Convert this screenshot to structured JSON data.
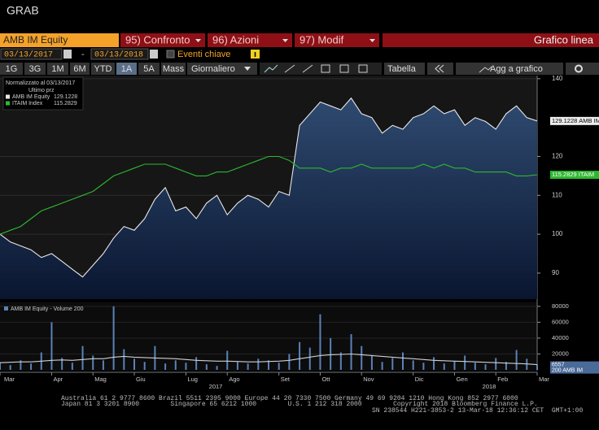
{
  "header": {
    "title": "GRAB"
  },
  "command_bar": {
    "security": "AMB IM Equity",
    "items": [
      "95) Confronto",
      "96) Azioni",
      "97) Modif"
    ],
    "view": "Grafico linea"
  },
  "date_bar": {
    "start": "03/13/2017",
    "separator": "-",
    "end": "03/13/2018",
    "events": "Eventi chiave"
  },
  "period_bar": {
    "periods": [
      "1G",
      "3G",
      "1M",
      "6M",
      "YTD",
      "1A",
      "5A",
      "Mass"
    ],
    "selected": "1A",
    "frequency": "Giornaliero",
    "table": "Tabella",
    "add": "Agg a grafico"
  },
  "legend": {
    "normalized": "Normalizzato al 03/13/2017",
    "last_price": "Ultimo prz"
  },
  "years": [
    "2017",
    "2018"
  ],
  "chart_data": [
    {
      "type": "line",
      "categories": [
        "Mar",
        null,
        null,
        null,
        null,
        "Apr",
        null,
        null,
        null,
        "Mag",
        null,
        null,
        null,
        "Giu",
        null,
        null,
        null,
        null,
        "Lug",
        null,
        null,
        null,
        "Ago",
        null,
        null,
        null,
        null,
        "Set",
        null,
        null,
        null,
        "Ott",
        null,
        null,
        null,
        "Nov",
        null,
        null,
        null,
        null,
        "Dic",
        null,
        null,
        null,
        "Gen",
        null,
        null,
        null,
        "Feb",
        null,
        null,
        null,
        "Mar"
      ],
      "series": [
        {
          "name": "AMB IM Equity",
          "end_label": "AMB IM",
          "color": "#e8e8e8",
          "area": true,
          "values": [
            100,
            98,
            97,
            96,
            94,
            95,
            93,
            91,
            89,
            92,
            95,
            99,
            102,
            101,
            104,
            109,
            112,
            106,
            107,
            104,
            108,
            110,
            105,
            108,
            110,
            109,
            107,
            111,
            110,
            128,
            131,
            134,
            133,
            132,
            135,
            131,
            130,
            126,
            128,
            127,
            130,
            131,
            133,
            131,
            132,
            128,
            130,
            129,
            127,
            131,
            133,
            130,
            129.1228
          ]
        },
        {
          "name": "ITAIM Index",
          "end_label": "ITAIM",
          "color": "#2eb82e",
          "area": false,
          "values": [
            100,
            101,
            102,
            104,
            106,
            107,
            108,
            109,
            110,
            111,
            113,
            115,
            116,
            117,
            118,
            118,
            118,
            117,
            116,
            115,
            115,
            116,
            116,
            117,
            118,
            119,
            120,
            120,
            119,
            117,
            117,
            117,
            116,
            117,
            117,
            118,
            117,
            117,
            117,
            117,
            117,
            118,
            117,
            118,
            117,
            117,
            116,
            116,
            116,
            116,
            115,
            115,
            115.2829
          ]
        }
      ],
      "ylim": [
        83.3,
        140.8
      ],
      "yticks": [
        90,
        100,
        110,
        120,
        140
      ],
      "grid": true
    },
    {
      "type": "bar",
      "title": "AMB IM Equity - Volume 200",
      "series": [
        {
          "color": "#5b82b8",
          "values": [
            9000,
            6000,
            12000,
            8000,
            22000,
            60000,
            15000,
            9000,
            30000,
            18000,
            12000,
            80000,
            26000,
            14000,
            10000,
            30000,
            8000,
            12000,
            9000,
            16000,
            7000,
            5000,
            24000,
            10000,
            8000,
            14000,
            12000,
            9000,
            20000,
            35000,
            28000,
            70000,
            40000,
            22000,
            45000,
            30000,
            18000,
            10000,
            15000,
            22000,
            12000,
            9000,
            16000,
            8000,
            11000,
            18000,
            9000,
            7000,
            15000,
            10000,
            25000,
            14000,
            6557
          ]
        },
        {
          "color": "#d0d0d0",
          "end_label": "200 AMB IM",
          "values": [
            9000,
            9500,
            10000,
            10000,
            11000,
            12000,
            12500,
            12000,
            13000,
            14000,
            14000,
            16000,
            17000,
            16000,
            15500,
            15000,
            14500,
            14000,
            13000,
            12000,
            11500,
            11000,
            11000,
            10500,
            10000,
            10000,
            10500,
            11000,
            12000,
            14000,
            16000,
            18000,
            19000,
            19500,
            20000,
            19000,
            18000,
            17000,
            16000,
            15000,
            14000,
            13000,
            12000,
            11500,
            11000,
            10500,
            10000,
            9500,
            9000,
            8500,
            8000,
            7500,
            6557
          ]
        }
      ],
      "ylim": [
        0,
        85000
      ],
      "yticks": [
        20000,
        40000,
        60000,
        80000
      ]
    }
  ],
  "footer": {
    "lines": [
      "Australia 61 2 9777 8600 Brazil 5511 2395 9000 Europe 44 20 7330 7500 Germany 49 69 9204 1210 Hong Kong 852 2977 6000",
      "Japan 81 3 3201 8900        Singapore 65 6212 1000        U.S. 1 212 318 2000        Copyright 2018 Bloomberg Finance L.P.",
      "SN 238544 H221-3853-2 13-Mar-18 12:36:12 CET  GMT+1:00"
    ]
  }
}
